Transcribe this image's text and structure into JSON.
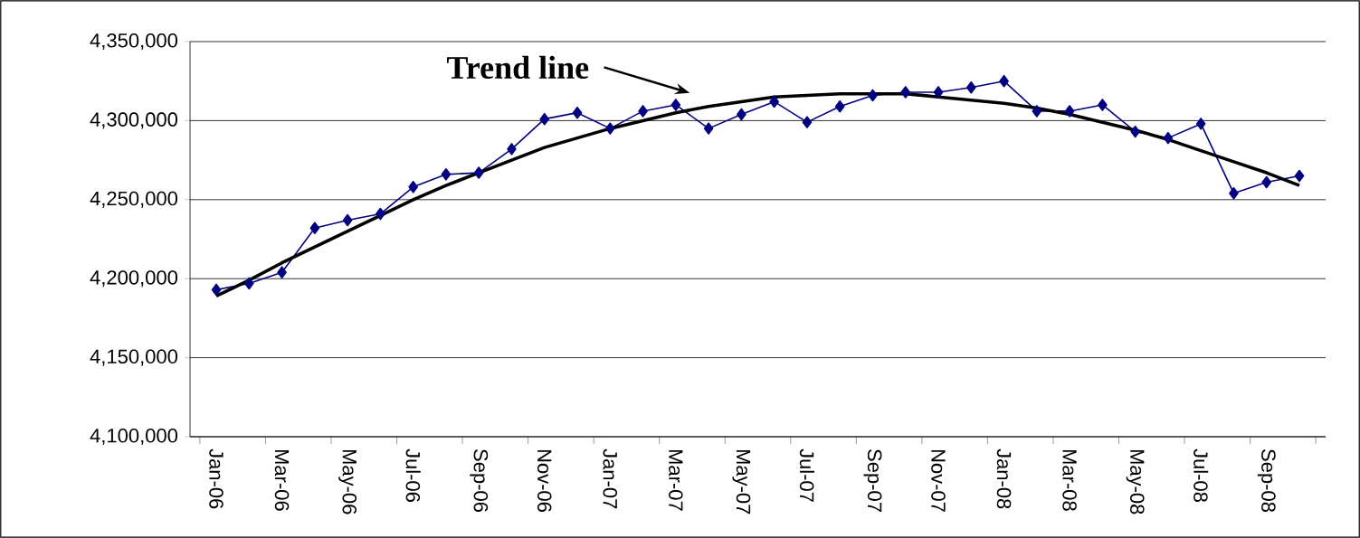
{
  "chart_data": {
    "type": "line",
    "categories": [
      "Jan-06",
      null,
      "Mar-06",
      null,
      "May-06",
      null,
      "Jul-06",
      null,
      "Sep-06",
      null,
      "Nov-06",
      null,
      "Jan-07",
      null,
      "Mar-07",
      null,
      "May-07",
      null,
      "Jul-07",
      null,
      "Sep-07",
      null,
      "Nov-07",
      null,
      "Jan-08",
      null,
      "Mar-08",
      null,
      "May-08",
      null,
      "Jul-08",
      null,
      "Sep-08",
      null
    ],
    "series": [
      {
        "color": "#000080",
        "marker": "diamond",
        "values": [
          4193000,
          4197000,
          4204000,
          4232000,
          4237000,
          4241000,
          4258000,
          4266000,
          4267000,
          4282000,
          4301000,
          4305000,
          4295000,
          4306000,
          4310000,
          4295000,
          4304000,
          4312000,
          4299000,
          4309000,
          4316000,
          4318000,
          4318000,
          4321000,
          4325000,
          4306000,
          4306000,
          4310000,
          4293000,
          4289000,
          4298000,
          4254000,
          4261000,
          4265000
        ]
      },
      {
        "color": "#000000",
        "marker": "none",
        "values": [
          4189000,
          4199000,
          4210000,
          4220000,
          4230000,
          4240000,
          4250000,
          4259000,
          4267000,
          4275000,
          4283000,
          4289000,
          4295000,
          4300000,
          4305000,
          4309000,
          4312000,
          4315000,
          4316000,
          4317000,
          4317000,
          4317000,
          4315000,
          4313000,
          4311000,
          4308000,
          4304000,
          4299000,
          4294000,
          4288000,
          4281000,
          4274000,
          4267000,
          4259000
        ]
      }
    ],
    "ylim": [
      4100000,
      4350000
    ],
    "yticks": [
      {
        "value": 4100000,
        "label": "4,100,000"
      },
      {
        "value": 4150000,
        "label": "4,150,000"
      },
      {
        "value": 4200000,
        "label": "4,200,000"
      },
      {
        "value": 4250000,
        "label": "4,250,000"
      },
      {
        "value": 4300000,
        "label": "4,300,000"
      },
      {
        "value": 4350000,
        "label": "4,350,000"
      }
    ],
    "grid": "y",
    "annotations": [
      "Trend line"
    ]
  }
}
